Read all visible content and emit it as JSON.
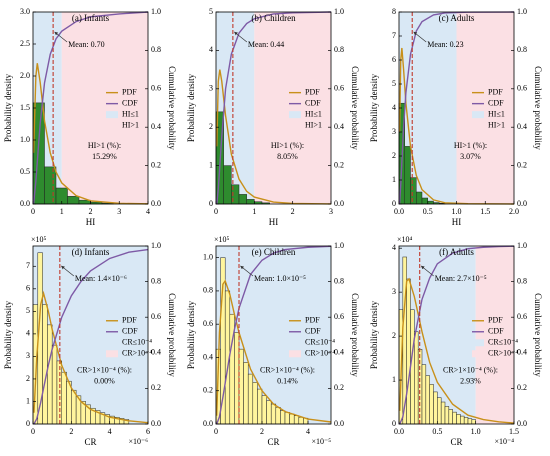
{
  "chart_data": [
    {
      "type": "histogram",
      "title": "(a) Infants",
      "xlabel": "HI",
      "ylabel": "Probability density",
      "y2label": "Cumulative probability",
      "bins": [
        0,
        0.4,
        0.8,
        1.2,
        1.6,
        2.0,
        2.4,
        2.8
      ],
      "counts": [
        1.58,
        0.58,
        0.25,
        0.12,
        0.06,
        0.03,
        0.015
      ],
      "color": "#2e8b2e",
      "series": [
        {
          "name": "PDF",
          "color": "#c8901a",
          "x": [
            0.02,
            0.1,
            0.15,
            0.25,
            0.4,
            0.6,
            0.8,
            1.0,
            1.5,
            2,
            3,
            4
          ],
          "values": [
            0.8,
            2.0,
            2.2,
            1.9,
            1.3,
            0.8,
            0.5,
            0.33,
            0.13,
            0.05,
            0.01,
            0.002
          ]
        },
        {
          "name": "CDF",
          "color": "#7e5aa6",
          "axis": "y2",
          "x": [
            0.02,
            0.1,
            0.15,
            0.25,
            0.4,
            0.6,
            0.8,
            1.0,
            1.5,
            2,
            3,
            4
          ],
          "values": [
            0.0,
            0.12,
            0.22,
            0.42,
            0.63,
            0.78,
            0.86,
            0.9,
            0.95,
            0.975,
            0.99,
            1.0
          ]
        }
      ],
      "regions": [
        {
          "name": "HI≤1",
          "color": "#d9e8f5"
        },
        {
          "name": "HI>1",
          "color": "#fbe0e4"
        }
      ],
      "threshold": 1,
      "mean": 0.7,
      "mean_label": "Mean: 0.70",
      "annotation": [
        "HI>1 (%):",
        "15.29%"
      ],
      "xlim": [
        0,
        4
      ],
      "xticks": [
        0,
        1,
        2,
        3,
        4
      ],
      "ylim": [
        0,
        3
      ],
      "yticks": [
        {
          "value": 0,
          "label": "0.0"
        },
        {
          "value": 0.5,
          "label": "0.5"
        },
        {
          "value": 1,
          "label": "1.0"
        },
        {
          "value": 1.5,
          "label": "1.5"
        },
        {
          "value": 2,
          "label": "2.0"
        },
        {
          "value": 2.5,
          "label": "2.5"
        },
        {
          "value": 3,
          "label": "3.0"
        }
      ],
      "y2lim": [
        0,
        1
      ],
      "y2ticks": [
        {
          "value": 0,
          "label": "0.0"
        },
        {
          "value": 0.2,
          "label": "0.2"
        },
        {
          "value": 0.4,
          "label": "0.4"
        },
        {
          "value": 0.6,
          "label": "0.6"
        },
        {
          "value": 0.8,
          "label": "0.8"
        },
        {
          "value": 1,
          "label": "1.0"
        }
      ]
    },
    {
      "type": "histogram",
      "title": "(b) Children",
      "xlabel": "HI",
      "ylabel": "Probability density",
      "y2label": "Cumulative probability",
      "bins": [
        0,
        0.2,
        0.4,
        0.6,
        0.8,
        1.0,
        1.2,
        1.4
      ],
      "counts": [
        2.4,
        1.0,
        0.5,
        0.25,
        0.12,
        0.06,
        0.03
      ],
      "color": "#2e8b2e",
      "series": [
        {
          "name": "PDF",
          "color": "#c8901a",
          "x": [
            0.02,
            0.06,
            0.1,
            0.15,
            0.25,
            0.4,
            0.6,
            0.8,
            1,
            1.5,
            2,
            3
          ],
          "values": [
            1.5,
            3.2,
            3.5,
            3.2,
            2.3,
            1.3,
            0.65,
            0.33,
            0.18,
            0.05,
            0.015,
            0.002
          ]
        },
        {
          "name": "CDF",
          "color": "#7e5aa6",
          "axis": "y2",
          "x": [
            0.02,
            0.06,
            0.1,
            0.15,
            0.25,
            0.4,
            0.6,
            0.8,
            1,
            1.5,
            2,
            3
          ],
          "values": [
            0,
            0.08,
            0.2,
            0.35,
            0.6,
            0.78,
            0.89,
            0.94,
            0.965,
            0.99,
            0.996,
            1
          ]
        }
      ],
      "regions": [
        {
          "name": "HI≤1",
          "color": "#d9e8f5"
        },
        {
          "name": "HI>1",
          "color": "#fbe0e4"
        }
      ],
      "threshold": 1,
      "mean": 0.44,
      "mean_label": "Mean: 0.44",
      "annotation": [
        "HI>1 (%):",
        "8.05%"
      ],
      "xlim": [
        0,
        3
      ],
      "xticks": [
        0,
        1,
        2,
        3
      ],
      "ylim": [
        0,
        5
      ],
      "yticks": [
        0,
        1,
        2,
        3,
        4,
        5
      ],
      "y2lim": [
        0,
        1
      ],
      "y2ticks": [
        {
          "value": 0,
          "label": "0.0"
        },
        {
          "value": 0.2,
          "label": "0.2"
        },
        {
          "value": 0.4,
          "label": "0.4"
        },
        {
          "value": 0.6,
          "label": "0.6"
        },
        {
          "value": 0.8,
          "label": "0.8"
        },
        {
          "value": 1,
          "label": "1.0"
        }
      ]
    },
    {
      "type": "histogram",
      "title": "(c) Adults",
      "xlabel": "HI",
      "ylabel": "Probability density",
      "y2label": "Cumulative probability",
      "bins": [
        0,
        0.1,
        0.2,
        0.3,
        0.4,
        0.5,
        0.6,
        0.7,
        0.8
      ],
      "counts": [
        4.2,
        2.4,
        1.1,
        0.5,
        0.25,
        0.12,
        0.06,
        0.03
      ],
      "color": "#2e8b2e",
      "series": [
        {
          "name": "PDF",
          "color": "#c8901a",
          "x": [
            0.01,
            0.03,
            0.05,
            0.08,
            0.12,
            0.2,
            0.3,
            0.4,
            0.6,
            0.8,
            1.2,
            2
          ],
          "values": [
            3,
            6,
            6.5,
            5.6,
            4.2,
            2.4,
            1.2,
            0.6,
            0.17,
            0.05,
            0.01,
            0
          ]
        },
        {
          "name": "CDF",
          "color": "#7e5aa6",
          "axis": "y2",
          "x": [
            0.01,
            0.03,
            0.05,
            0.08,
            0.12,
            0.2,
            0.3,
            0.4,
            0.6,
            0.8,
            1.2,
            2
          ],
          "values": [
            0,
            0.1,
            0.22,
            0.4,
            0.58,
            0.78,
            0.9,
            0.95,
            0.985,
            0.995,
            0.999,
            1
          ]
        }
      ],
      "regions": [
        {
          "name": "HI≤1",
          "color": "#d9e8f5"
        },
        {
          "name": "HI>1",
          "color": "#fbe0e4"
        }
      ],
      "threshold": 1,
      "mean": 0.23,
      "mean_label": "Mean: 0.23",
      "annotation": [
        "HI>1 (%):",
        "3.07%"
      ],
      "xlim": [
        0,
        2
      ],
      "xticks": [
        {
          "value": 0,
          "label": "0.0"
        },
        {
          "value": 0.5,
          "label": "0.5"
        },
        {
          "value": 1,
          "label": "1.0"
        },
        {
          "value": 1.5,
          "label": "1.5"
        },
        {
          "value": 2,
          "label": "2.0"
        }
      ],
      "ylim": [
        0,
        8
      ],
      "yticks": [
        0,
        1,
        2,
        3,
        4,
        5,
        6,
        7,
        8
      ],
      "y2lim": [
        0,
        1
      ],
      "y2ticks": [
        {
          "value": 0,
          "label": "0.0"
        },
        {
          "value": 0.2,
          "label": "0.2"
        },
        {
          "value": 0.4,
          "label": "0.4"
        },
        {
          "value": 0.6,
          "label": "0.6"
        },
        {
          "value": 0.8,
          "label": "0.8"
        },
        {
          "value": 1,
          "label": "1.0"
        }
      ]
    },
    {
      "type": "histogram",
      "title": "(d) Infants",
      "xlabel": "CR",
      "ylabel": "Probability density",
      "y2label": "Cumulative probability",
      "x_offset": "×10⁻⁶",
      "y_offset": "×10⁵",
      "bins": [
        0,
        0.25,
        0.5,
        0.75,
        1,
        1.25,
        1.5,
        1.75,
        2,
        2.25,
        2.5,
        2.75,
        3,
        3.25,
        3.5,
        3.75,
        4,
        4.25,
        4.5,
        4.75,
        5
      ],
      "counts": [
        5.3,
        7.6,
        5.3,
        4.4,
        3.5,
        2.8,
        2.3,
        1.9,
        1.5,
        1.25,
        1.0,
        0.85,
        0.7,
        0.6,
        0.5,
        0.42,
        0.35,
        0.3,
        0.25,
        0.2
      ],
      "color": "#fff59d",
      "series": [
        {
          "name": "PDF",
          "color": "#c8901a",
          "x": [
            0.05,
            0.2,
            0.4,
            0.55,
            0.8,
            1.0,
            1.5,
            2,
            2.5,
            3,
            4,
            5,
            6
          ],
          "values": [
            0.5,
            3.0,
            5.3,
            5.8,
            5.0,
            4.2,
            2.6,
            1.6,
            1.0,
            0.65,
            0.3,
            0.14,
            0.06
          ]
        },
        {
          "name": "CDF",
          "color": "#7e5aa6",
          "axis": "y2",
          "x": [
            0.05,
            0.2,
            0.4,
            0.55,
            0.8,
            1.0,
            1.5,
            2,
            2.5,
            3,
            4,
            5,
            6
          ],
          "values": [
            0,
            0.03,
            0.12,
            0.2,
            0.33,
            0.42,
            0.6,
            0.72,
            0.8,
            0.86,
            0.93,
            0.965,
            0.98
          ]
        }
      ],
      "regions": [
        {
          "name": "CR≤10⁻⁴",
          "color": "#d9e8f5"
        },
        {
          "name": "CR>10⁻⁴",
          "color": "#fbe0e4"
        }
      ],
      "threshold": 100,
      "mean": 1.4,
      "mean_label": "Mean: 1.4×10⁻⁶",
      "annotation": [
        "CR>1×10⁻⁴ (%):",
        "0.00%"
      ],
      "xlim": [
        0,
        6
      ],
      "xticks": [
        0,
        2,
        4,
        6
      ],
      "ylim": [
        0,
        7.9
      ],
      "yticks": [
        0,
        1,
        2,
        3,
        4,
        5,
        6,
        7
      ],
      "y2lim": [
        0,
        1
      ],
      "y2ticks": [
        {
          "value": 0,
          "label": "0.0"
        },
        {
          "value": 0.2,
          "label": "0.2"
        },
        {
          "value": 0.4,
          "label": "0.4"
        },
        {
          "value": 0.6,
          "label": "0.6"
        },
        {
          "value": 0.8,
          "label": "0.8"
        },
        {
          "value": 1,
          "label": "1.0"
        }
      ]
    },
    {
      "type": "histogram",
      "title": "(e) Children",
      "xlabel": "CR",
      "ylabel": "Probability density",
      "y2label": "Cumulative probability",
      "x_offset": "×10⁻⁵",
      "y_offset": "×10⁵",
      "bins": [
        0,
        0.2,
        0.4,
        0.6,
        0.8,
        1.0,
        1.2,
        1.4,
        1.6,
        1.8,
        2.0,
        2.2,
        2.4,
        2.6,
        2.8,
        3.0,
        3.2,
        3.4,
        3.6,
        3.8,
        4.0
      ],
      "counts": [
        0.45,
        1.0,
        0.8,
        0.66,
        0.55,
        0.45,
        0.37,
        0.3,
        0.25,
        0.21,
        0.17,
        0.14,
        0.12,
        0.1,
        0.08,
        0.07,
        0.06,
        0.05,
        0.04,
        0.035
      ],
      "color": "#fff59d",
      "series": [
        {
          "name": "PDF",
          "color": "#c8901a",
          "x": [
            0.03,
            0.15,
            0.3,
            0.4,
            0.6,
            0.8,
            1.0,
            1.5,
            2,
            2.5,
            3,
            4,
            5
          ],
          "values": [
            0.05,
            0.55,
            0.84,
            0.86,
            0.78,
            0.66,
            0.55,
            0.33,
            0.2,
            0.12,
            0.075,
            0.03,
            0.012
          ]
        },
        {
          "name": "CDF",
          "color": "#7e5aa6",
          "axis": "y2",
          "x": [
            0.03,
            0.15,
            0.3,
            0.4,
            0.6,
            0.8,
            1.0,
            1.5,
            2,
            2.5,
            3,
            4,
            5
          ],
          "values": [
            0,
            0.04,
            0.15,
            0.23,
            0.39,
            0.53,
            0.65,
            0.84,
            0.92,
            0.96,
            0.98,
            0.993,
            0.998
          ]
        }
      ],
      "regions": [
        {
          "name": "CR≤10⁻⁴",
          "color": "#d9e8f5"
        },
        {
          "name": "CR>10⁻⁴",
          "color": "#fbe0e4"
        }
      ],
      "threshold": 10,
      "mean": 1.0,
      "mean_label": "Mean: 1.0×10⁻⁵",
      "annotation": [
        "CR>1×10⁻⁴ (%):",
        "0.14%"
      ],
      "xlim": [
        0,
        5
      ],
      "xticks": [
        0,
        2,
        4
      ],
      "ylim": [
        0,
        1.07
      ],
      "yticks": [
        {
          "value": 0,
          "label": "0.0"
        },
        {
          "value": 0.2,
          "label": "0.2"
        },
        {
          "value": 0.4,
          "label": "0.4"
        },
        {
          "value": 0.6,
          "label": "0.6"
        },
        {
          "value": 0.8,
          "label": "0.8"
        },
        {
          "value": 1,
          "label": "1.0"
        }
      ],
      "y2lim": [
        0,
        1
      ],
      "y2ticks": [
        {
          "value": 0,
          "label": "0.0"
        },
        {
          "value": 0.2,
          "label": "0.2"
        },
        {
          "value": 0.4,
          "label": "0.4"
        },
        {
          "value": 0.6,
          "label": "0.6"
        },
        {
          "value": 0.8,
          "label": "0.8"
        },
        {
          "value": 1,
          "label": "1.0"
        }
      ]
    },
    {
      "type": "histogram",
      "title": "(f) Adults",
      "xlabel": "CR",
      "ylabel": "Probability density",
      "y2label": "Cumulative probability",
      "x_offset": "×10⁻⁴",
      "y_offset": "×10⁴",
      "bins": [
        0,
        0.05,
        0.1,
        0.15,
        0.2,
        0.25,
        0.3,
        0.35,
        0.4,
        0.45,
        0.5,
        0.55,
        0.6,
        0.65,
        0.7,
        0.75,
        0.8,
        0.85,
        0.9,
        0.95,
        1.0
      ],
      "counts": [
        2.6,
        3.8,
        3.3,
        2.6,
        2.1,
        1.7,
        1.35,
        1.1,
        0.9,
        0.73,
        0.6,
        0.5,
        0.4,
        0.33,
        0.27,
        0.22,
        0.18,
        0.15,
        0.12,
        0.1
      ],
      "color": "#fff59d",
      "series": [
        {
          "name": "PDF",
          "color": "#c8901a",
          "x": [
            0.01,
            0.05,
            0.1,
            0.13,
            0.2,
            0.3,
            0.4,
            0.5,
            0.7,
            0.9,
            1.1,
            1.3,
            1.5
          ],
          "values": [
            0.3,
            2.2,
            3.25,
            3.3,
            2.9,
            2.1,
            1.4,
            0.95,
            0.45,
            0.2,
            0.1,
            0.05,
            0.02
          ]
        },
        {
          "name": "CDF",
          "color": "#7e5aa6",
          "axis": "y2",
          "x": [
            0.01,
            0.05,
            0.1,
            0.13,
            0.2,
            0.3,
            0.4,
            0.5,
            0.7,
            0.9,
            1.1,
            1.3,
            1.5
          ],
          "values": [
            0,
            0.04,
            0.17,
            0.26,
            0.48,
            0.7,
            0.82,
            0.9,
            0.96,
            0.985,
            0.993,
            0.997,
            0.999
          ]
        }
      ],
      "regions": [
        {
          "name": "CR≤10⁻⁴",
          "color": "#d9e8f5"
        },
        {
          "name": "CR>10⁻⁴",
          "color": "#fbe0e4"
        }
      ],
      "threshold": 1,
      "mean": 0.27,
      "mean_label": "Mean: 2.7×10⁻⁵",
      "annotation": [
        "CR>1×10⁻⁴ (%):",
        "2.93%"
      ],
      "xlim": [
        0,
        1.5
      ],
      "xticks": [
        {
          "value": 0,
          "label": "0.0"
        },
        {
          "value": 0.5,
          "label": "0.5"
        },
        {
          "value": 1,
          "label": "1.0"
        },
        {
          "value": 1.5,
          "label": "1.5"
        }
      ],
      "ylim": [
        0,
        4.05
      ],
      "yticks": [
        0,
        1,
        2,
        3,
        4
      ],
      "y2lim": [
        0,
        1
      ],
      "y2ticks": [
        {
          "value": 0,
          "label": "0.0"
        },
        {
          "value": 0.2,
          "label": "0.2"
        },
        {
          "value": 0.4,
          "label": "0.4"
        },
        {
          "value": 0.6,
          "label": "0.6"
        },
        {
          "value": 0.8,
          "label": "0.8"
        },
        {
          "value": 1,
          "label": "1.0"
        }
      ]
    }
  ]
}
